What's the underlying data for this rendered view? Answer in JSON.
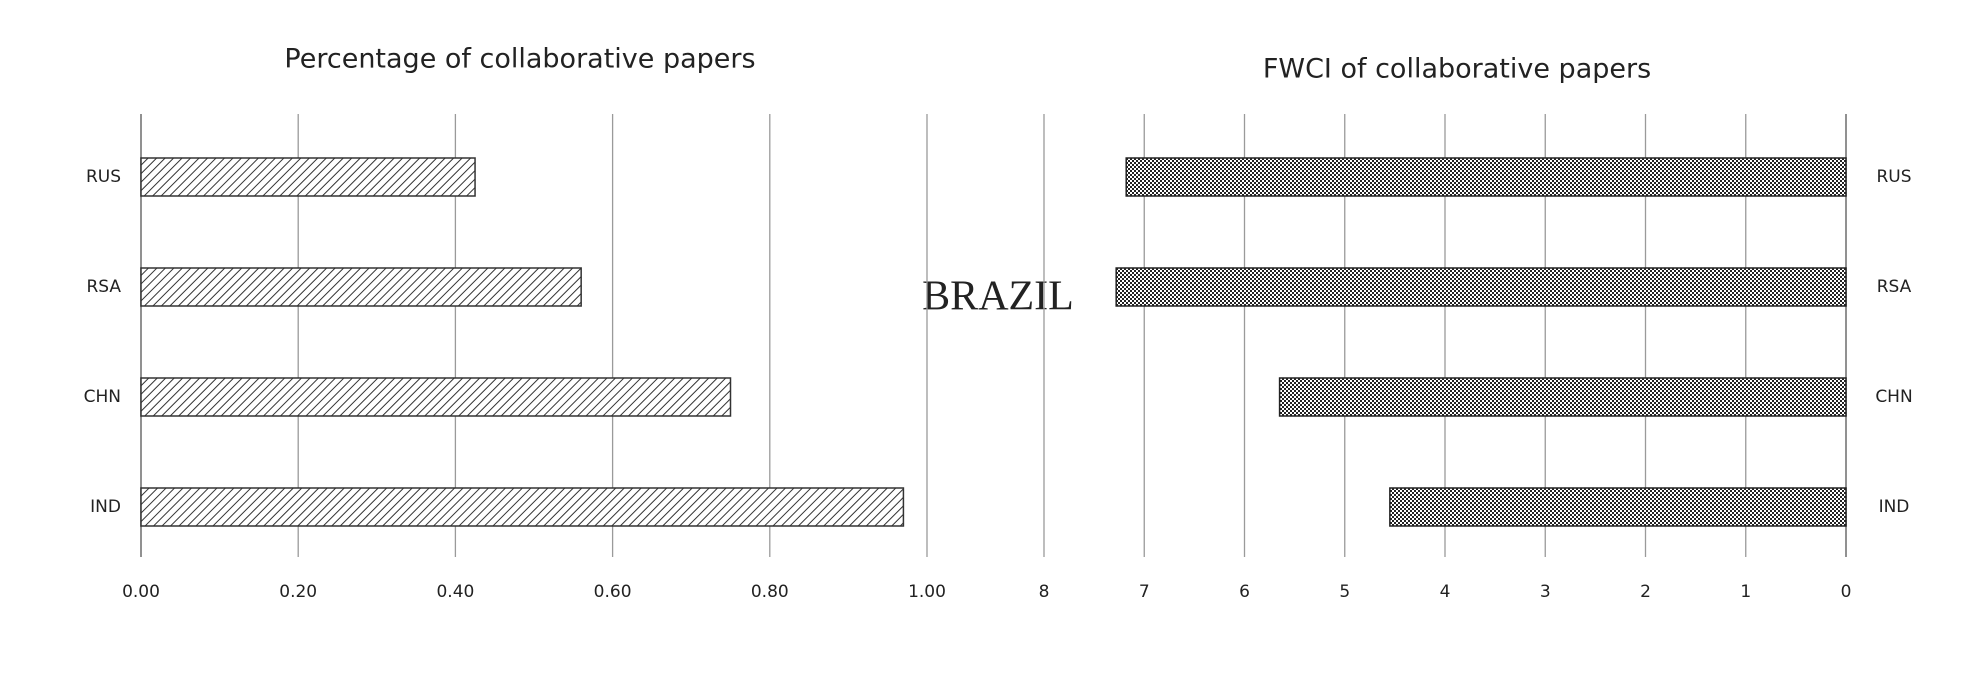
{
  "center_label": "BRAZIL",
  "chart_data": [
    {
      "type": "hbar",
      "title": "Percentage of collaborative papers",
      "categories": [
        "RUS",
        "RSA",
        "CHN",
        "IND"
      ],
      "values": [
        0.425,
        0.56,
        0.75,
        0.97
      ],
      "color": "#333333",
      "pattern": "hatch",
      "xlim": [
        0,
        1
      ],
      "xticks": [
        {
          "value": 0,
          "label": "0.00"
        },
        {
          "value": 0.2,
          "label": "0.20"
        },
        {
          "value": 0.4,
          "label": "0.40"
        },
        {
          "value": 0.6,
          "label": "0.60"
        },
        {
          "value": 0.8,
          "label": "0.80"
        },
        {
          "value": 1,
          "label": "1.00"
        }
      ],
      "x_reversed": false,
      "category_axis_side": "left",
      "grid": true
    },
    {
      "type": "hbar",
      "title": "FWCI of collaborative papers",
      "categories": [
        "RUS",
        "RSA",
        "CHN",
        "IND"
      ],
      "values": [
        7.18,
        7.28,
        5.65,
        4.55
      ],
      "color": "#222222",
      "pattern": "crosshatch",
      "xlim": [
        0,
        8
      ],
      "xticks": [
        8,
        7,
        6,
        5,
        4,
        3,
        2,
        1,
        0
      ],
      "x_reversed": true,
      "category_axis_side": "right",
      "grid": true
    }
  ]
}
